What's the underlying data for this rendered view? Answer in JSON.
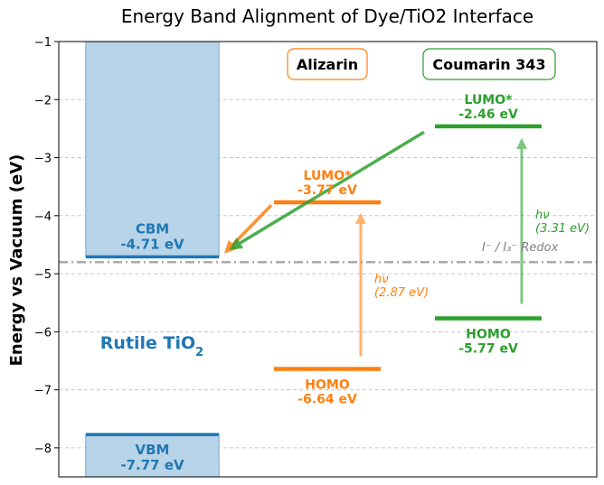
{
  "chart_data": {
    "type": "energy-level-diagram",
    "title": "Energy Band Alignment of Dye/TiO2 Interface",
    "ylabel": "Energy vs Vacuum (eV)",
    "ylim": [
      -8.5,
      -1
    ],
    "yticks": [
      -1,
      -2,
      -3,
      -4,
      -5,
      -6,
      -7,
      -8
    ],
    "ytick_labels": [
      "−1",
      "−2",
      "−3",
      "−4",
      "−5",
      "−6",
      "−7",
      "−8"
    ],
    "grid": "horizontal dashed",
    "semiconductor": {
      "name": "Rutile TiO2",
      "label_main": "Rutile TiO",
      "label_sub": "2",
      "color": "#1f77b4",
      "fill": "#b8d4e8",
      "cbm": {
        "value": -4.71,
        "label": "CBM",
        "value_label": "-4.71 eV"
      },
      "vbm": {
        "value": -7.77,
        "label": "VBM",
        "value_label": "-7.77 eV"
      }
    },
    "dyes": [
      {
        "name": "Alizarin",
        "color": "#ff7f0e",
        "lumo": {
          "value": -3.77,
          "label": "LUMO*",
          "value_label": "-3.77 eV"
        },
        "homo": {
          "value": -6.64,
          "label": "HOMO",
          "value_label": "-6.64 eV"
        },
        "excitation": {
          "label": "hν",
          "energy_label": "(2.87 eV)",
          "value": 2.87
        }
      },
      {
        "name": "Coumarin 343",
        "color": "#2ca02c",
        "lumo": {
          "value": -2.46,
          "label": "LUMO*",
          "value_label": "-2.46 eV"
        },
        "homo": {
          "value": -5.77,
          "label": "HOMO",
          "value_label": "-5.77 eV"
        },
        "excitation": {
          "label": "hν",
          "energy_label": "(3.31 eV)",
          "value": 3.31
        }
      }
    ],
    "redox": {
      "value": -4.8,
      "label": "I⁻ / I₃⁻ Redox",
      "color": "#aaaaaa"
    }
  }
}
